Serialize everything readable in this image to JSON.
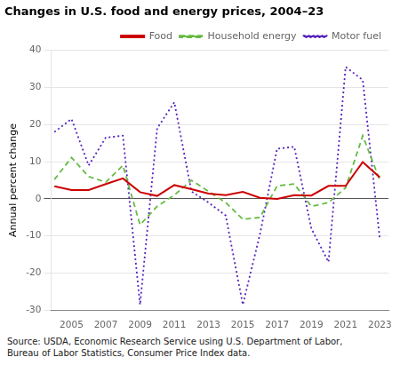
{
  "chart_data": {
    "type": "line",
    "title": "Changes in U.S. food and energy prices, 2004–23",
    "y_label": "Annual percent change",
    "source": "Source: USDA, Economic Research Service using U.S. Department of Labor,\nBureau of Labor Statistics, Consumer Price Index data.",
    "x": [
      2004,
      2005,
      2006,
      2007,
      2008,
      2009,
      2010,
      2011,
      2012,
      2013,
      2014,
      2015,
      2016,
      2017,
      2018,
      2019,
      2020,
      2021,
      2022,
      2023
    ],
    "series": [
      {
        "name": "Food",
        "color": "#cc0000",
        "line_style": "solid",
        "values": [
          3.4,
          2.4,
          2.4,
          4.0,
          5.5,
          1.8,
          0.8,
          3.7,
          2.6,
          1.4,
          1.0,
          1.9,
          0.3,
          0.0,
          1.0,
          0.9,
          3.5,
          3.5,
          9.9,
          5.8
        ]
      },
      {
        "name": "Household energy",
        "color": "#66bb44",
        "line_style": "dashed",
        "values": [
          5.2,
          11.1,
          6.0,
          4.5,
          9.0,
          -7.0,
          -2.0,
          1.0,
          5.0,
          2.0,
          -1.0,
          -5.5,
          -5.0,
          3.5,
          4.0,
          -2.0,
          -1.0,
          3.0,
          17.0,
          5.0
        ]
      },
      {
        "name": "Motor fuel",
        "color": "#5522bb",
        "line_style": "dotted",
        "values": [
          18.0,
          21.5,
          9.0,
          16.5,
          17.0,
          -28.5,
          19.0,
          26.0,
          2.0,
          -1.0,
          -4.5,
          -28.5,
          -9.5,
          13.5,
          14.0,
          -8.0,
          -17.0,
          35.5,
          32.0,
          -11.0
        ]
      }
    ],
    "xlim": [
      2003.8,
      2023.5
    ],
    "xticks": [
      2005,
      2007,
      2009,
      2011,
      2013,
      2015,
      2017,
      2019,
      2021,
      2023
    ],
    "ylim": [
      -30,
      40
    ],
    "yticks": [
      -30,
      -20,
      -10,
      0,
      10,
      20,
      30,
      40
    ],
    "grid": "y",
    "legend": "upper right"
  }
}
